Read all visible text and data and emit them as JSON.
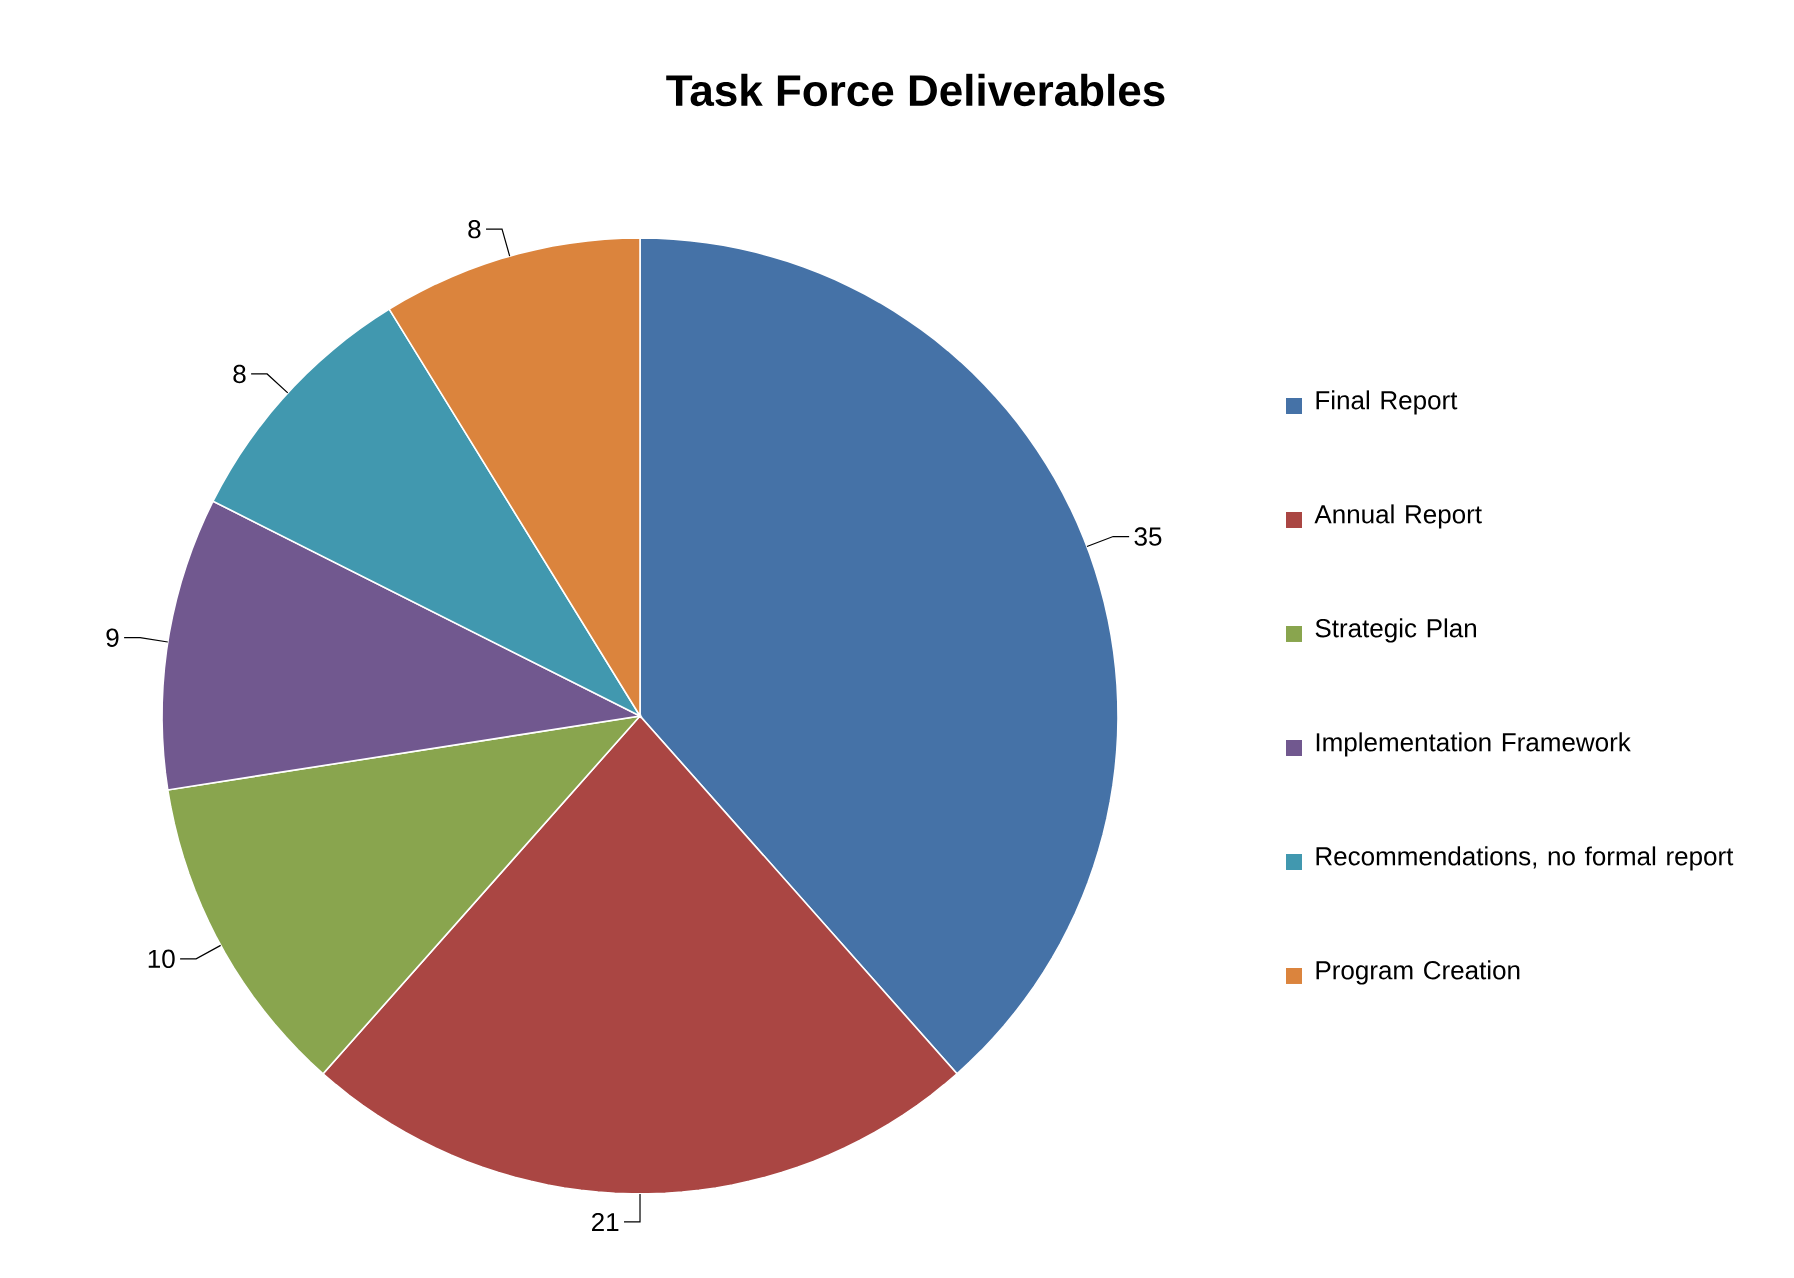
{
  "chart_data": {
    "type": "pie",
    "title": "Task Force Deliverables",
    "categories": [
      "Final Report",
      "Annual Report",
      "Strategic Plan",
      "Implementation Framework",
      "Recommendations, no formal report",
      "Program Creation"
    ],
    "values": [
      35,
      21,
      10,
      9,
      8,
      8
    ],
    "colors": [
      "#4572a7",
      "#aa4643",
      "#89a54e",
      "#71588f",
      "#4198af",
      "#db843d"
    ],
    "data_labels": true,
    "legend": "right"
  }
}
